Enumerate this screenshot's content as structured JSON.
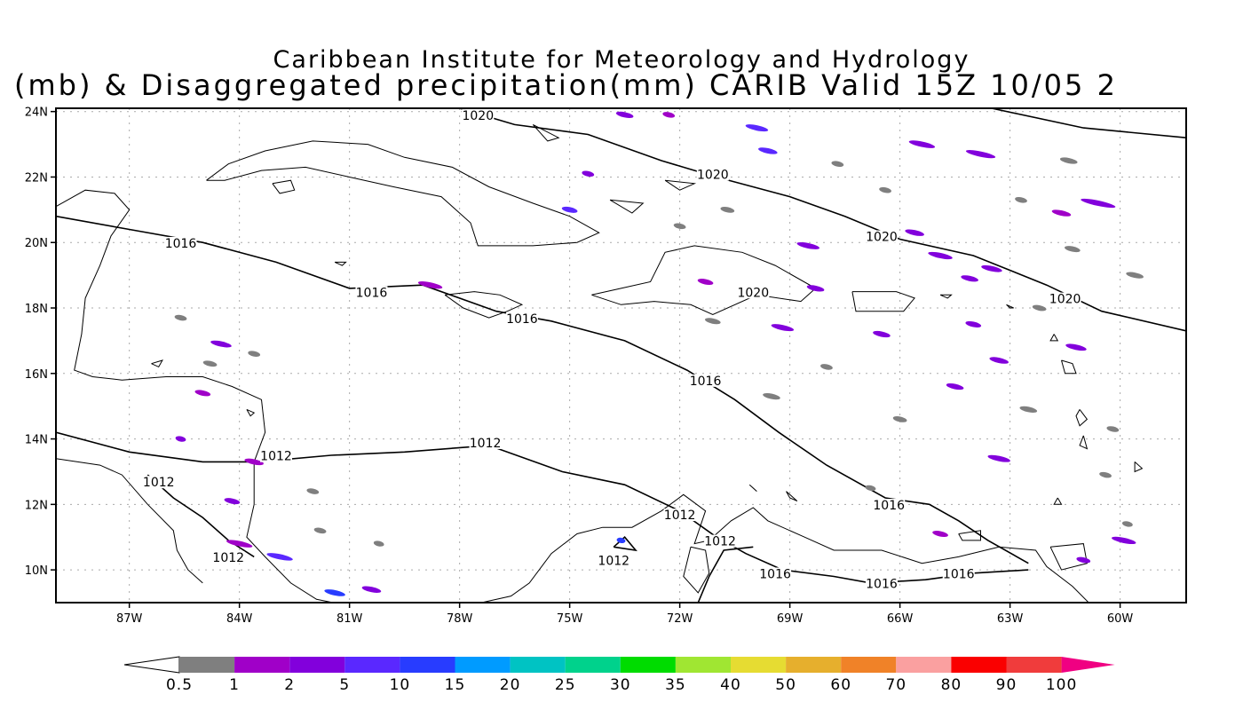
{
  "title": {
    "line1": "Caribbean Institute for Meteorology and Hydrology",
    "line2": "(mb) & Disaggregated precipitation(mm) CARIB Valid 15Z 10/05 2"
  },
  "map": {
    "lat_labels": [
      "24N",
      "22N",
      "20N",
      "18N",
      "16N",
      "14N",
      "12N",
      "10N"
    ],
    "lon_labels": [
      "87W",
      "84W",
      "81W",
      "78W",
      "75W",
      "72W",
      "69W",
      "66W",
      "63W",
      "60W"
    ],
    "isobars": [
      {
        "label": "1020",
        "lon": -77.5,
        "lat": 23.8
      },
      {
        "label": "1020",
        "lon": -71.1,
        "lat": 22.0
      },
      {
        "label": "1020",
        "lon": -66.5,
        "lat": 20.1
      },
      {
        "label": "1020",
        "lon": -70.0,
        "lat": 18.4
      },
      {
        "label": "1020",
        "lon": -61.5,
        "lat": 18.2
      },
      {
        "label": "1016",
        "lon": -85.6,
        "lat": 19.9
      },
      {
        "label": "1016",
        "lon": -80.4,
        "lat": 18.4
      },
      {
        "label": "1016",
        "lon": -76.3,
        "lat": 17.6
      },
      {
        "label": "1016",
        "lon": -71.3,
        "lat": 15.7
      },
      {
        "label": "1016",
        "lon": -66.3,
        "lat": 11.9
      },
      {
        "label": "1016",
        "lon": -69.4,
        "lat": 9.8
      },
      {
        "label": "1016",
        "lon": -66.5,
        "lat": 9.5
      },
      {
        "label": "1016",
        "lon": -64.4,
        "lat": 9.8
      },
      {
        "label": "1012",
        "lon": -83.0,
        "lat": 13.4
      },
      {
        "label": "1012",
        "lon": -86.2,
        "lat": 12.6
      },
      {
        "label": "1012",
        "lon": -84.3,
        "lat": 10.3
      },
      {
        "label": "1012",
        "lon": -77.3,
        "lat": 13.8
      },
      {
        "label": "1012",
        "lon": -72.0,
        "lat": 11.6
      },
      {
        "label": "1012",
        "lon": -73.8,
        "lat": 10.2
      },
      {
        "label": "1012",
        "lon": -70.9,
        "lat": 10.8
      }
    ]
  },
  "colorbar": {
    "labels": [
      "0.5",
      "1",
      "2",
      "5",
      "10",
      "15",
      "20",
      "25",
      "30",
      "35",
      "40",
      "50",
      "60",
      "70",
      "80",
      "90",
      "100"
    ],
    "colors": [
      "#7f7f7f",
      "#a000c8",
      "#8200dc",
      "#5a28ff",
      "#283cff",
      "#009bff",
      "#00c3c3",
      "#00d28c",
      "#00dc00",
      "#a0e632",
      "#e6dc32",
      "#e6af2d",
      "#f08228",
      "#faa0a0",
      "#fa0000",
      "#f03c3c",
      "#f00082"
    ]
  },
  "precip": [
    {
      "lon": -73.5,
      "lat": 23.9,
      "w": 20,
      "c": "#8200dc"
    },
    {
      "lon": -72.3,
      "lat": 23.9,
      "w": 14,
      "c": "#a000c8"
    },
    {
      "lon": -69.9,
      "lat": 23.5,
      "w": 26,
      "c": "#5a28ff"
    },
    {
      "lon": -69.6,
      "lat": 22.8,
      "w": 22,
      "c": "#5a28ff"
    },
    {
      "lon": -65.4,
      "lat": 23.0,
      "w": 30,
      "c": "#8200dc"
    },
    {
      "lon": -63.8,
      "lat": 22.7,
      "w": 34,
      "c": "#8200dc"
    },
    {
      "lon": -61.4,
      "lat": 22.5,
      "w": 20,
      "c": "#7f7f7f"
    },
    {
      "lon": -60.6,
      "lat": 21.2,
      "w": 40,
      "c": "#8200dc"
    },
    {
      "lon": -61.6,
      "lat": 20.9,
      "w": 22,
      "c": "#a000c8"
    },
    {
      "lon": -64.9,
      "lat": 19.6,
      "w": 28,
      "c": "#8200dc"
    },
    {
      "lon": -65.6,
      "lat": 20.3,
      "w": 22,
      "c": "#8200dc"
    },
    {
      "lon": -63.5,
      "lat": 19.2,
      "w": 24,
      "c": "#8200dc"
    },
    {
      "lon": -68.5,
      "lat": 19.9,
      "w": 26,
      "c": "#8200dc"
    },
    {
      "lon": -68.3,
      "lat": 18.6,
      "w": 20,
      "c": "#8200dc"
    },
    {
      "lon": -69.2,
      "lat": 17.4,
      "w": 26,
      "c": "#8200dc"
    },
    {
      "lon": -71.3,
      "lat": 18.8,
      "w": 18,
      "c": "#a000c8"
    },
    {
      "lon": -75.0,
      "lat": 21.0,
      "w": 18,
      "c": "#5a28ff"
    },
    {
      "lon": -74.5,
      "lat": 22.1,
      "w": 14,
      "c": "#8200dc"
    },
    {
      "lon": -78.8,
      "lat": 18.7,
      "w": 28,
      "c": "#a000c8"
    },
    {
      "lon": -84.5,
      "lat": 16.9,
      "w": 24,
      "c": "#8200dc"
    },
    {
      "lon": -85.0,
      "lat": 15.4,
      "w": 18,
      "c": "#a000c8"
    },
    {
      "lon": -83.6,
      "lat": 13.3,
      "w": 22,
      "c": "#a000c8"
    },
    {
      "lon": -82.9,
      "lat": 10.4,
      "w": 30,
      "c": "#5a28ff"
    },
    {
      "lon": -81.4,
      "lat": 9.3,
      "w": 24,
      "c": "#283cff"
    },
    {
      "lon": -80.4,
      "lat": 9.4,
      "w": 22,
      "c": "#8200dc"
    },
    {
      "lon": -84.0,
      "lat": 10.8,
      "w": 30,
      "c": "#a000c8"
    },
    {
      "lon": -84.2,
      "lat": 12.1,
      "w": 18,
      "c": "#8200dc"
    },
    {
      "lon": -85.6,
      "lat": 14.0,
      "w": 12,
      "c": "#8200dc"
    },
    {
      "lon": -73.6,
      "lat": 10.9,
      "w": 10,
      "c": "#283cff"
    },
    {
      "lon": -66.5,
      "lat": 17.2,
      "w": 20,
      "c": "#8200dc"
    },
    {
      "lon": -64.0,
      "lat": 17.5,
      "w": 18,
      "c": "#8200dc"
    },
    {
      "lon": -63.3,
      "lat": 16.4,
      "w": 22,
      "c": "#8200dc"
    },
    {
      "lon": -61.2,
      "lat": 16.8,
      "w": 24,
      "c": "#8200dc"
    },
    {
      "lon": -64.5,
      "lat": 15.6,
      "w": 20,
      "c": "#8200dc"
    },
    {
      "lon": -63.3,
      "lat": 13.4,
      "w": 26,
      "c": "#8200dc"
    },
    {
      "lon": -59.9,
      "lat": 10.9,
      "w": 28,
      "c": "#8200dc"
    },
    {
      "lon": -61.0,
      "lat": 10.3,
      "w": 16,
      "c": "#8200dc"
    },
    {
      "lon": -64.9,
      "lat": 11.1,
      "w": 18,
      "c": "#a000c8"
    },
    {
      "lon": -62.5,
      "lat": 14.9,
      "w": 20,
      "c": "#7f7f7f"
    },
    {
      "lon": -66.0,
      "lat": 14.6,
      "w": 16,
      "c": "#7f7f7f"
    },
    {
      "lon": -69.5,
      "lat": 15.3,
      "w": 20,
      "c": "#7f7f7f"
    },
    {
      "lon": -68.0,
      "lat": 16.2,
      "w": 14,
      "c": "#7f7f7f"
    },
    {
      "lon": -64.1,
      "lat": 18.9,
      "w": 20,
      "c": "#8200dc"
    },
    {
      "lon": -61.3,
      "lat": 19.8,
      "w": 18,
      "c": "#7f7f7f"
    },
    {
      "lon": -59.6,
      "lat": 19.0,
      "w": 20,
      "c": "#7f7f7f"
    },
    {
      "lon": -72.0,
      "lat": 20.5,
      "w": 14,
      "c": "#7f7f7f"
    },
    {
      "lon": -70.7,
      "lat": 21.0,
      "w": 16,
      "c": "#7f7f7f"
    },
    {
      "lon": -67.7,
      "lat": 22.4,
      "w": 14,
      "c": "#7f7f7f"
    },
    {
      "lon": -62.7,
      "lat": 21.3,
      "w": 14,
      "c": "#7f7f7f"
    },
    {
      "lon": -66.4,
      "lat": 21.6,
      "w": 14,
      "c": "#7f7f7f"
    },
    {
      "lon": -82.0,
      "lat": 12.4,
      "w": 14,
      "c": "#7f7f7f"
    },
    {
      "lon": -81.8,
      "lat": 11.2,
      "w": 14,
      "c": "#7f7f7f"
    },
    {
      "lon": -80.2,
      "lat": 10.8,
      "w": 12,
      "c": "#7f7f7f"
    },
    {
      "lon": -84.8,
      "lat": 16.3,
      "w": 16,
      "c": "#7f7f7f"
    },
    {
      "lon": -85.6,
      "lat": 17.7,
      "w": 14,
      "c": "#7f7f7f"
    },
    {
      "lon": -83.6,
      "lat": 16.6,
      "w": 14,
      "c": "#7f7f7f"
    },
    {
      "lon": -60.4,
      "lat": 12.9,
      "w": 14,
      "c": "#7f7f7f"
    },
    {
      "lon": -59.8,
      "lat": 11.4,
      "w": 12,
      "c": "#7f7f7f"
    },
    {
      "lon": -66.8,
      "lat": 12.5,
      "w": 12,
      "c": "#7f7f7f"
    },
    {
      "lon": -71.1,
      "lat": 17.6,
      "w": 18,
      "c": "#7f7f7f"
    },
    {
      "lon": -62.2,
      "lat": 18.0,
      "w": 16,
      "c": "#7f7f7f"
    },
    {
      "lon": -60.2,
      "lat": 14.3,
      "w": 14,
      "c": "#7f7f7f"
    }
  ]
}
